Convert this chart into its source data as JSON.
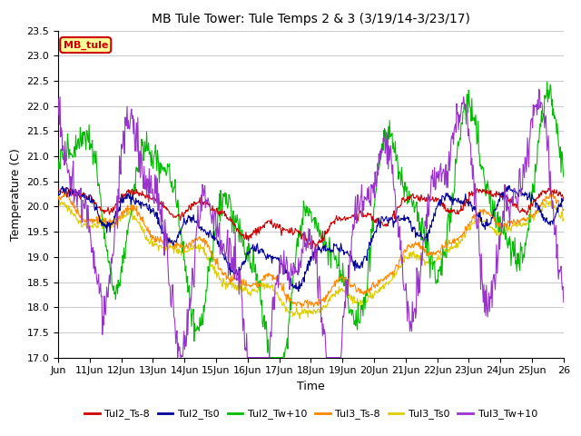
{
  "title": "MB Tule Tower: Tule Temps 2 & 3 (3/19/14-3/23/17)",
  "xlabel": "Time",
  "ylabel": "Temperature (C)",
  "ylim": [
    17.0,
    23.5
  ],
  "xlim": [
    0,
    16
  ],
  "x_ticks": [
    0,
    1,
    2,
    3,
    4,
    5,
    6,
    7,
    8,
    9,
    10,
    11,
    12,
    13,
    14,
    15,
    16
  ],
  "x_tick_labels": [
    "Jun",
    "11Jun",
    "12Jun",
    "13Jun",
    "14Jun",
    "15Jun",
    "16Jun",
    "17Jun",
    "18Jun",
    "19Jun",
    "20Jun",
    "21Jun",
    "22Jun",
    "23Jun",
    "24Jun",
    "25Jun",
    "26"
  ],
  "yticks": [
    17.0,
    17.5,
    18.0,
    18.5,
    19.0,
    19.5,
    20.0,
    20.5,
    21.0,
    21.5,
    22.0,
    22.5,
    23.0,
    23.5
  ],
  "series": {
    "Tul2_Ts-8": {
      "color": "#cc0000",
      "linewidth": 0.8
    },
    "Tul2_Ts0": {
      "color": "#000099",
      "linewidth": 0.8
    },
    "Tul2_Tw+10": {
      "color": "#00bb00",
      "linewidth": 0.8
    },
    "Tul3_Ts-8": {
      "color": "#ff8800",
      "linewidth": 0.8
    },
    "Tul3_Ts0": {
      "color": "#ddcc00",
      "linewidth": 0.8
    },
    "Tul3_Tw+10": {
      "color": "#9933cc",
      "linewidth": 0.8
    }
  },
  "legend_box": {
    "text": "MB_tule",
    "facecolor": "#ffff99",
    "edgecolor": "#cc0000",
    "textcolor": "#cc0000"
  },
  "background_color": "#ffffff",
  "grid_color": "#cccccc",
  "figsize": [
    6.4,
    4.8
  ],
  "dpi": 100
}
